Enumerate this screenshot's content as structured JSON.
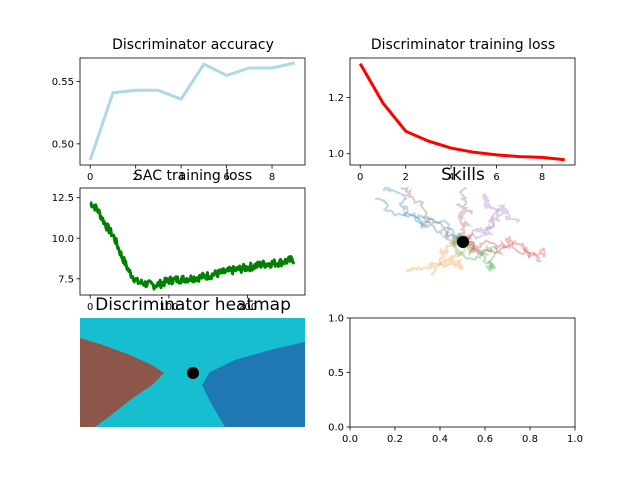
{
  "colors": {
    "accuracy_line": "#add8e6",
    "disc_loss_line": "#ff0000",
    "sac_line": "#008000",
    "heatmap_brown": "#8c564b",
    "heatmap_cyan": "#17becf",
    "heatmap_blue": "#1f77b4",
    "marker": "#000000",
    "skills": [
      "#1f77b4",
      "#ff7f0e",
      "#2ca02c",
      "#d62728",
      "#9467bd",
      "#8c564b"
    ]
  },
  "chart_data": [
    {
      "id": "accuracy",
      "type": "line",
      "title": "Discriminator accuracy",
      "x": [
        0,
        1,
        2,
        3,
        4,
        5,
        6,
        7,
        8,
        9
      ],
      "y": [
        0.487,
        0.541,
        0.543,
        0.543,
        0.536,
        0.564,
        0.555,
        0.561,
        0.561,
        0.565
      ],
      "xlim": [
        -0.45,
        9.45
      ],
      "ylim": [
        0.483,
        0.569
      ],
      "xticks": [
        0,
        2,
        4,
        6,
        8
      ],
      "yticks": [
        0.5,
        0.55
      ],
      "ytick_labels": [
        "0.50",
        "0.55"
      ],
      "grid": false
    },
    {
      "id": "disc_loss",
      "type": "line",
      "title": "Discriminator training loss",
      "x": [
        0,
        1,
        2,
        3,
        4,
        5,
        6,
        7,
        8,
        9
      ],
      "y": [
        1.32,
        1.18,
        1.08,
        1.045,
        1.02,
        1.005,
        0.996,
        0.99,
        0.987,
        0.979
      ],
      "xlim": [
        -0.45,
        9.45
      ],
      "ylim": [
        0.96,
        1.34
      ],
      "xticks": [
        0,
        2,
        4,
        6,
        8
      ],
      "yticks": [
        1.0,
        1.2
      ],
      "ytick_labels": [
        "1.0",
        "1.2"
      ],
      "grid": false
    },
    {
      "id": "sac_loss",
      "type": "line",
      "title": "SAC training loss",
      "x_points": [
        0,
        5,
        10,
        20,
        30,
        40,
        50,
        60,
        70,
        80,
        90,
        100,
        120,
        140,
        160,
        180,
        200,
        220,
        240,
        260
      ],
      "y_points": [
        12.2,
        12.0,
        11.7,
        10.8,
        10.1,
        8.9,
        7.9,
        7.3,
        7.2,
        7.1,
        7.2,
        7.4,
        7.5,
        7.6,
        7.8,
        8.0,
        8.2,
        8.4,
        8.5,
        8.7
      ],
      "n_points": 260,
      "noise": 0.25,
      "xlim": [
        -13,
        273
      ],
      "ylim": [
        6.5,
        13.1
      ],
      "xticks": [
        0,
        100,
        200
      ],
      "yticks": [
        7.5,
        10.0,
        12.5
      ],
      "ytick_labels": [
        "7.5",
        "10.0",
        "12.5"
      ],
      "grid": false
    },
    {
      "id": "skills",
      "type": "line",
      "title": "Skills",
      "series_count": 6,
      "axes_visible": false,
      "marker": "start-point"
    },
    {
      "id": "heatmap",
      "type": "heatmap",
      "title": "Discriminator heatmap",
      "classes": [
        "brown-region",
        "cyan-region",
        "blue-region"
      ],
      "axes_visible": false,
      "marker": "start-point"
    },
    {
      "id": "empty",
      "type": "line",
      "title": "",
      "xlim": [
        0,
        1
      ],
      "ylim": [
        0,
        1
      ],
      "xticks": [
        0.0,
        0.2,
        0.4,
        0.6,
        0.8,
        1.0
      ],
      "xtick_labels": [
        "0.0",
        "0.2",
        "0.4",
        "0.6",
        "0.8",
        "1.0"
      ],
      "yticks": [
        0.0,
        0.5,
        1.0
      ],
      "ytick_labels": [
        "0.0",
        "0.5",
        "1.0"
      ],
      "grid": false
    }
  ]
}
